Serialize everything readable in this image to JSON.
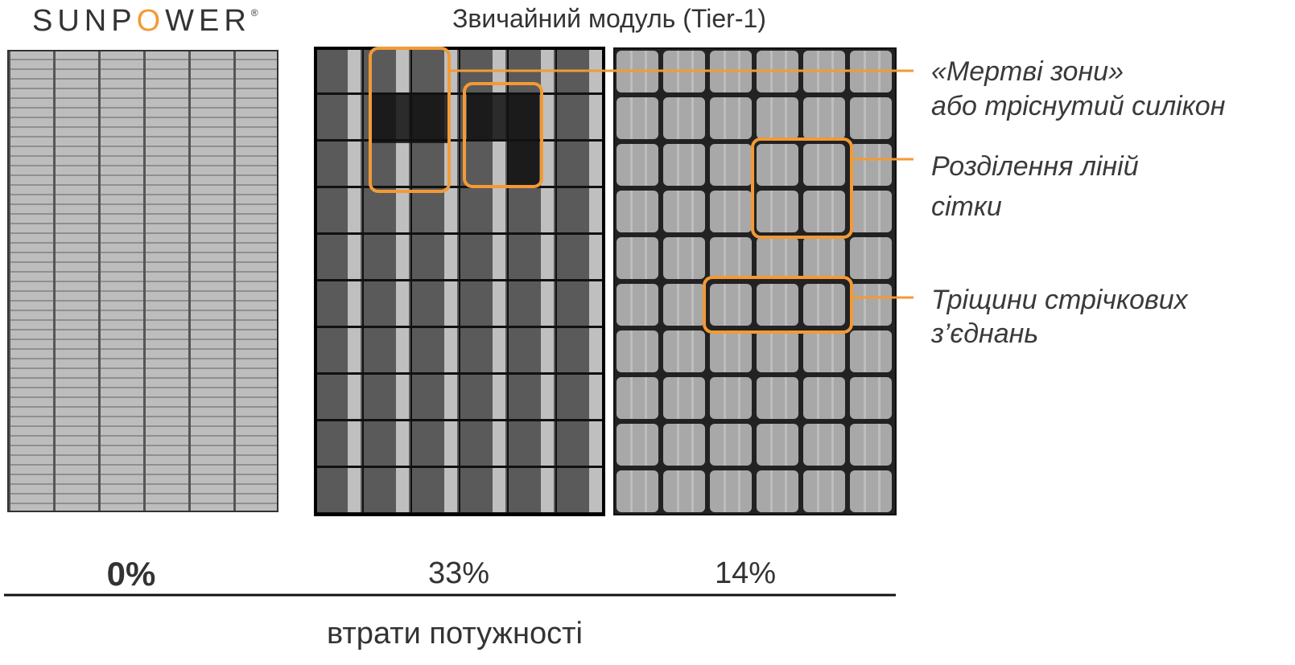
{
  "logo": {
    "parts": [
      "SUNP",
      "O",
      "WER"
    ],
    "mark": "®"
  },
  "header": {
    "title": "Звичайний модуль (Tier-1)"
  },
  "annotations": [
    {
      "lines": [
        "«Мертві зони»",
        "або тріснутий силікон"
      ]
    },
    {
      "lines": [
        "Розділення ліній",
        "сітки"
      ]
    },
    {
      "lines": [
        "Тріщини стрічкових",
        "з’єднань"
      ]
    }
  ],
  "losses": [
    "0%",
    "33%",
    "14%"
  ],
  "footer": {
    "label": "втрати потужності"
  }
}
